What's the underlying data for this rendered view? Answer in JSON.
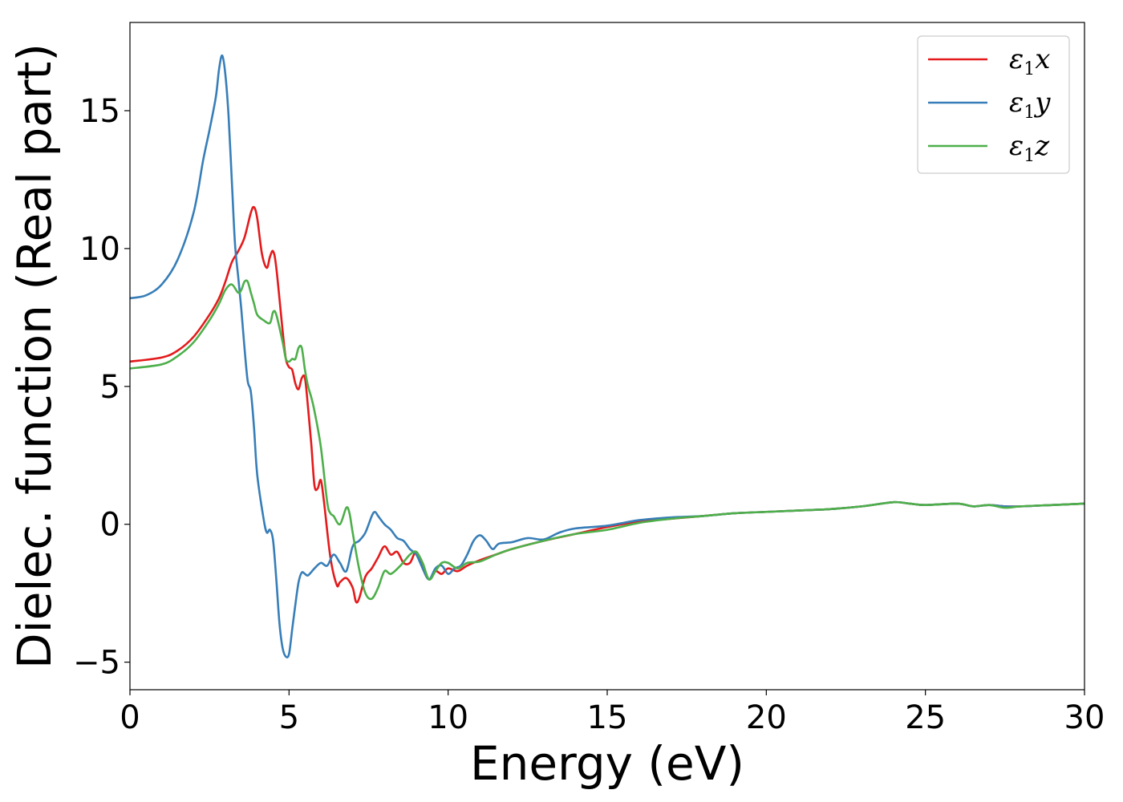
{
  "chart_data": {
    "type": "line",
    "xlabel": "Energy (eV)",
    "ylabel": "Dielec. function (Real part)",
    "xlim": [
      0,
      30
    ],
    "ylim": [
      -6,
      18.2
    ],
    "xticks": [
      0,
      5,
      10,
      15,
      20,
      25,
      30
    ],
    "yticks": [
      -5,
      0,
      5,
      10,
      15
    ],
    "xtick_labels": [
      "0",
      "5",
      "10",
      "15",
      "20",
      "25",
      "30"
    ],
    "ytick_labels": [
      "−5",
      "0",
      "5",
      "10",
      "15"
    ],
    "grid": false,
    "legend_position": "top-right",
    "series": [
      {
        "name": "ε1x",
        "label_base": "ε",
        "label_sub": "1",
        "label_tail": "x",
        "color": "#e41a1c",
        "points": [
          [
            0,
            5.9
          ],
          [
            1,
            6.05
          ],
          [
            1.5,
            6.3
          ],
          [
            2,
            6.8
          ],
          [
            2.5,
            7.6
          ],
          [
            2.8,
            8.2
          ],
          [
            3.0,
            8.8
          ],
          [
            3.2,
            9.5
          ],
          [
            3.4,
            9.9
          ],
          [
            3.6,
            10.4
          ],
          [
            3.8,
            11.3
          ],
          [
            3.9,
            11.5
          ],
          [
            4.0,
            11.1
          ],
          [
            4.15,
            9.8
          ],
          [
            4.3,
            9.3
          ],
          [
            4.4,
            9.7
          ],
          [
            4.5,
            9.9
          ],
          [
            4.6,
            9.3
          ],
          [
            4.8,
            7.0
          ],
          [
            4.9,
            6.0
          ],
          [
            5.0,
            5.7
          ],
          [
            5.1,
            5.6
          ],
          [
            5.2,
            5.1
          ],
          [
            5.3,
            4.9
          ],
          [
            5.4,
            5.3
          ],
          [
            5.5,
            5.3
          ],
          [
            5.6,
            4.2
          ],
          [
            5.7,
            2.9
          ],
          [
            5.8,
            1.4
          ],
          [
            5.9,
            1.3
          ],
          [
            6.0,
            1.6
          ],
          [
            6.1,
            0.8
          ],
          [
            6.3,
            -1.2
          ],
          [
            6.5,
            -2.2
          ],
          [
            6.6,
            -2.1
          ],
          [
            6.8,
            -1.95
          ],
          [
            7.0,
            -2.3
          ],
          [
            7.1,
            -2.8
          ],
          [
            7.2,
            -2.7
          ],
          [
            7.4,
            -1.9
          ],
          [
            7.6,
            -1.6
          ],
          [
            7.8,
            -1.2
          ],
          [
            8.0,
            -0.8
          ],
          [
            8.2,
            -1.1
          ],
          [
            8.4,
            -1.0
          ],
          [
            8.6,
            -1.4
          ],
          [
            8.8,
            -1.4
          ],
          [
            9.0,
            -1.0
          ],
          [
            9.2,
            -1.6
          ],
          [
            9.4,
            -2.0
          ],
          [
            9.6,
            -1.7
          ],
          [
            9.8,
            -1.8
          ],
          [
            10.0,
            -1.6
          ],
          [
            10.3,
            -1.7
          ],
          [
            10.6,
            -1.5
          ],
          [
            11,
            -1.3
          ],
          [
            11.5,
            -1.1
          ],
          [
            12,
            -0.9
          ],
          [
            13,
            -0.6
          ],
          [
            14,
            -0.35
          ],
          [
            15,
            -0.1
          ],
          [
            16,
            0.1
          ],
          [
            17,
            0.2
          ],
          [
            18,
            0.3
          ],
          [
            19,
            0.4
          ],
          [
            20,
            0.45
          ],
          [
            21,
            0.5
          ],
          [
            22,
            0.55
          ],
          [
            23,
            0.65
          ],
          [
            24,
            0.8
          ],
          [
            24.5,
            0.75
          ],
          [
            25,
            0.7
          ],
          [
            26,
            0.75
          ],
          [
            26.5,
            0.65
          ],
          [
            27,
            0.7
          ],
          [
            27.5,
            0.65
          ],
          [
            28,
            0.65
          ],
          [
            29,
            0.7
          ],
          [
            30,
            0.75
          ]
        ]
      },
      {
        "name": "ε1y",
        "label_base": "ε",
        "label_sub": "1",
        "label_tail": "y",
        "color": "#377eb8",
        "points": [
          [
            0,
            8.2
          ],
          [
            0.5,
            8.3
          ],
          [
            1,
            8.7
          ],
          [
            1.5,
            9.6
          ],
          [
            2,
            11.3
          ],
          [
            2.3,
            13.2
          ],
          [
            2.5,
            14.3
          ],
          [
            2.7,
            15.5
          ],
          [
            2.8,
            16.5
          ],
          [
            2.9,
            17.0
          ],
          [
            3.0,
            16.3
          ],
          [
            3.1,
            14.8
          ],
          [
            3.2,
            12.5
          ],
          [
            3.3,
            10.2
          ],
          [
            3.4,
            9.0
          ],
          [
            3.5,
            7.8
          ],
          [
            3.6,
            6.4
          ],
          [
            3.7,
            5.2
          ],
          [
            3.8,
            4.8
          ],
          [
            3.9,
            3.5
          ],
          [
            4.0,
            1.8
          ],
          [
            4.2,
            0.2
          ],
          [
            4.3,
            -0.3
          ],
          [
            4.4,
            -0.2
          ],
          [
            4.5,
            -0.6
          ],
          [
            4.6,
            -2.0
          ],
          [
            4.7,
            -3.6
          ],
          [
            4.8,
            -4.5
          ],
          [
            4.9,
            -4.8
          ],
          [
            5.0,
            -4.7
          ],
          [
            5.1,
            -3.8
          ],
          [
            5.2,
            -2.9
          ],
          [
            5.3,
            -2.1
          ],
          [
            5.4,
            -1.75
          ],
          [
            5.5,
            -1.8
          ],
          [
            5.6,
            -1.85
          ],
          [
            5.8,
            -1.6
          ],
          [
            6.0,
            -1.4
          ],
          [
            6.2,
            -1.5
          ],
          [
            6.4,
            -1.1
          ],
          [
            6.6,
            -1.4
          ],
          [
            6.8,
            -1.7
          ],
          [
            7.0,
            -0.8
          ],
          [
            7.2,
            -0.6
          ],
          [
            7.4,
            -0.3
          ],
          [
            7.6,
            0.3
          ],
          [
            7.7,
            0.45
          ],
          [
            7.8,
            0.3
          ],
          [
            8.0,
            0.0
          ],
          [
            8.2,
            -0.2
          ],
          [
            8.4,
            -0.5
          ],
          [
            8.6,
            -0.6
          ],
          [
            8.8,
            -0.9
          ],
          [
            9.0,
            -1.1
          ],
          [
            9.2,
            -1.6
          ],
          [
            9.4,
            -2.0
          ],
          [
            9.6,
            -1.6
          ],
          [
            9.8,
            -1.5
          ],
          [
            10.0,
            -1.8
          ],
          [
            10.2,
            -1.6
          ],
          [
            10.4,
            -1.5
          ],
          [
            10.6,
            -1.1
          ],
          [
            10.8,
            -0.6
          ],
          [
            11.0,
            -0.4
          ],
          [
            11.2,
            -0.6
          ],
          [
            11.4,
            -0.9
          ],
          [
            11.6,
            -0.7
          ],
          [
            12,
            -0.65
          ],
          [
            12.5,
            -0.5
          ],
          [
            13,
            -0.55
          ],
          [
            13.5,
            -0.3
          ],
          [
            14,
            -0.15
          ],
          [
            15,
            -0.05
          ],
          [
            16,
            0.15
          ],
          [
            17,
            0.25
          ],
          [
            18,
            0.3
          ],
          [
            19,
            0.4
          ],
          [
            20,
            0.45
          ],
          [
            21,
            0.5
          ],
          [
            22,
            0.55
          ],
          [
            23,
            0.65
          ],
          [
            24,
            0.8
          ],
          [
            24.5,
            0.75
          ],
          [
            25,
            0.7
          ],
          [
            26,
            0.75
          ],
          [
            26.5,
            0.65
          ],
          [
            27,
            0.7
          ],
          [
            27.5,
            0.65
          ],
          [
            28,
            0.65
          ],
          [
            29,
            0.7
          ],
          [
            30,
            0.75
          ]
        ]
      },
      {
        "name": "ε1z",
        "label_base": "ε",
        "label_sub": "1",
        "label_tail": "z",
        "color": "#4daf4a",
        "points": [
          [
            0,
            5.65
          ],
          [
            1,
            5.8
          ],
          [
            1.5,
            6.1
          ],
          [
            2,
            6.6
          ],
          [
            2.5,
            7.4
          ],
          [
            2.8,
            8.0
          ],
          [
            3.0,
            8.5
          ],
          [
            3.2,
            8.7
          ],
          [
            3.4,
            8.4
          ],
          [
            3.5,
            8.5
          ],
          [
            3.6,
            8.8
          ],
          [
            3.7,
            8.8
          ],
          [
            3.8,
            8.4
          ],
          [
            3.9,
            8.0
          ],
          [
            4.0,
            7.6
          ],
          [
            4.2,
            7.4
          ],
          [
            4.4,
            7.3
          ],
          [
            4.5,
            7.7
          ],
          [
            4.6,
            7.6
          ],
          [
            4.8,
            6.6
          ],
          [
            4.9,
            6.0
          ],
          [
            5.0,
            5.9
          ],
          [
            5.1,
            6.0
          ],
          [
            5.2,
            6.0
          ],
          [
            5.3,
            6.4
          ],
          [
            5.4,
            6.4
          ],
          [
            5.5,
            5.6
          ],
          [
            5.6,
            5.0
          ],
          [
            5.7,
            4.6
          ],
          [
            5.8,
            4.1
          ],
          [
            6.0,
            2.8
          ],
          [
            6.2,
            0.8
          ],
          [
            6.3,
            0.4
          ],
          [
            6.4,
            0.3
          ],
          [
            6.6,
            0.0
          ],
          [
            6.8,
            0.6
          ],
          [
            6.9,
            0.4
          ],
          [
            7.0,
            -0.3
          ],
          [
            7.2,
            -1.6
          ],
          [
            7.4,
            -2.5
          ],
          [
            7.6,
            -2.7
          ],
          [
            7.8,
            -2.3
          ],
          [
            8.0,
            -1.7
          ],
          [
            8.2,
            -1.8
          ],
          [
            8.5,
            -1.5
          ],
          [
            8.8,
            -1.1
          ],
          [
            9.0,
            -1.0
          ],
          [
            9.2,
            -1.4
          ],
          [
            9.4,
            -2.0
          ],
          [
            9.6,
            -1.7
          ],
          [
            9.8,
            -1.4
          ],
          [
            10.0,
            -1.4
          ],
          [
            10.3,
            -1.6
          ],
          [
            10.6,
            -1.4
          ],
          [
            11,
            -1.35
          ],
          [
            11.5,
            -1.1
          ],
          [
            12,
            -0.9
          ],
          [
            13,
            -0.6
          ],
          [
            14,
            -0.35
          ],
          [
            15,
            -0.2
          ],
          [
            16,
            0.05
          ],
          [
            17,
            0.2
          ],
          [
            18,
            0.3
          ],
          [
            19,
            0.4
          ],
          [
            20,
            0.45
          ],
          [
            21,
            0.5
          ],
          [
            22,
            0.55
          ],
          [
            23,
            0.65
          ],
          [
            24,
            0.8
          ],
          [
            24.5,
            0.75
          ],
          [
            25,
            0.7
          ],
          [
            26,
            0.75
          ],
          [
            26.5,
            0.65
          ],
          [
            27,
            0.7
          ],
          [
            27.5,
            0.6
          ],
          [
            28,
            0.65
          ],
          [
            29,
            0.7
          ],
          [
            30,
            0.75
          ]
        ]
      }
    ]
  }
}
